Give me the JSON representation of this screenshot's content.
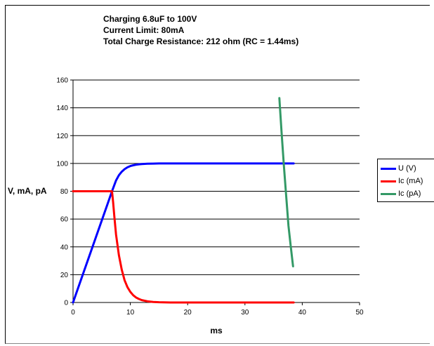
{
  "chart_data": {
    "type": "line",
    "title_lines": [
      "Charging 6.8uF to 100V",
      "Current Limit: 80mA",
      "Total Charge Resistance: 212 ohm (RC = 1.44ms)"
    ],
    "xlabel": "ms",
    "ylabel": "V, mA, pA",
    "xlim": [
      0,
      50
    ],
    "ylim": [
      0,
      160
    ],
    "x_ticks": [
      0,
      10,
      20,
      30,
      40,
      50
    ],
    "y_ticks": [
      0,
      20,
      40,
      60,
      80,
      100,
      120,
      140,
      160
    ],
    "grid": "horizontal",
    "legend_position": "right",
    "series": [
      {
        "name": "U (V)",
        "color": "#0000ff",
        "x": [
          0,
          2,
          4,
          6,
          6.8,
          7.5,
          8,
          8.5,
          9,
          9.5,
          10,
          10.5,
          11,
          11.5,
          12,
          13,
          14,
          15,
          17,
          20,
          25,
          30,
          35,
          38.5
        ],
        "y": [
          0,
          23.5,
          47,
          70.6,
          80,
          87.7,
          91.5,
          94.1,
          95.9,
          97.2,
          98.1,
          98.7,
          99.1,
          99.4,
          99.6,
          99.8,
          99.9,
          100,
          100,
          100,
          100,
          100,
          100,
          100
        ]
      },
      {
        "name": "Ic (mA)",
        "color": "#ff0000",
        "x": [
          0,
          6.8,
          7.0,
          7.2,
          7.5,
          8,
          8.5,
          9,
          9.5,
          10,
          10.5,
          11,
          11.5,
          12,
          13,
          14,
          15,
          17,
          20,
          25,
          30,
          35,
          38.5
        ],
        "y": [
          80,
          80,
          72,
          62,
          49,
          34,
          23.5,
          16,
          11,
          7.6,
          5.2,
          3.6,
          2.5,
          1.7,
          0.8,
          0.4,
          0.2,
          0,
          0,
          0,
          0,
          0,
          0
        ]
      },
      {
        "name": "Ic (pA)",
        "color": "#339966",
        "x": [
          36.0,
          36.4,
          36.8,
          37.2,
          37.6,
          38.0,
          38.4
        ],
        "y": [
          147,
          122,
          98,
          76,
          55,
          40,
          26
        ]
      }
    ]
  }
}
